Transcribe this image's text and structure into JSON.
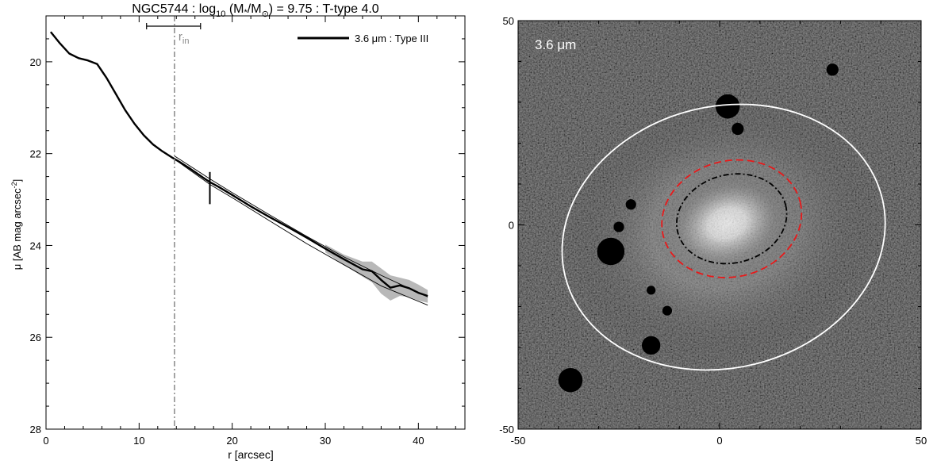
{
  "chart_data": [
    {
      "type": "line",
      "title": {
        "pre": "NGC5744 : log",
        "sub10": "10",
        "mid": " (M",
        "star": "*",
        "slash": "/M",
        "sun": "⊙",
        "post": ") = 9.75 : T-type 4.0"
      },
      "xlabel": "r [arcsec]",
      "ylabel": {
        "main": "μ [AB mag arcsec",
        "sup": "-2",
        "close": "]"
      },
      "xlim": [
        0,
        45
      ],
      "ylim": [
        28,
        19
      ],
      "x_ticks": [
        0,
        10,
        20,
        30,
        40
      ],
      "y_ticks": [
        20,
        22,
        24,
        26,
        28
      ],
      "legend": {
        "label": "3.6 μm : Type III",
        "position": "top-right"
      },
      "r_in": {
        "label_main": "r",
        "label_sub": "in",
        "value": 13.8,
        "range": [
          10.8,
          16.6
        ]
      },
      "break_marker": {
        "x": 17.6,
        "y_range": [
          22.4,
          23.1
        ]
      },
      "series": [
        {
          "name": "3.6 μm : Type III",
          "x": [
            0.5,
            1.5,
            2.5,
            3.5,
            4.5,
            5.5,
            6.5,
            7.5,
            8.5,
            9.5,
            10.5,
            11.5,
            12.5,
            13.5,
            14.5,
            15.5,
            16.5,
            17.6,
            18.5,
            20,
            22,
            24,
            26,
            28,
            30,
            32,
            34,
            35,
            36,
            37,
            38,
            39,
            40,
            41
          ],
          "y": [
            19.35,
            19.6,
            19.82,
            19.92,
            19.97,
            20.05,
            20.35,
            20.7,
            21.05,
            21.35,
            21.6,
            21.8,
            21.95,
            22.08,
            22.2,
            22.33,
            22.47,
            22.62,
            22.72,
            22.9,
            23.15,
            23.38,
            23.6,
            23.83,
            24.07,
            24.3,
            24.52,
            24.56,
            24.75,
            24.92,
            24.87,
            24.93,
            25.03,
            25.1
          ]
        },
        {
          "name": "",
          "style": "fit-upper",
          "x": [
            13.8,
            17.6,
            20,
            24,
            28,
            32,
            36,
            41
          ],
          "y": [
            22.05,
            22.55,
            22.85,
            23.33,
            23.8,
            24.25,
            24.65,
            25.12
          ]
        },
        {
          "name": "",
          "style": "fit-lower",
          "x": [
            13.8,
            17.6,
            20,
            24,
            28,
            32,
            36,
            41
          ],
          "y": [
            22.12,
            22.67,
            22.96,
            23.46,
            23.96,
            24.42,
            24.88,
            25.3
          ]
        }
      ],
      "uncertainty_band": {
        "x": [
          30,
          32,
          34,
          35,
          36,
          37,
          38,
          39,
          40,
          41
        ],
        "lower": [
          23.98,
          24.2,
          24.35,
          24.35,
          24.5,
          24.65,
          24.7,
          24.75,
          24.85,
          24.97
        ],
        "upper": [
          24.15,
          24.42,
          24.68,
          24.8,
          25.05,
          25.2,
          25.1,
          25.12,
          25.2,
          25.25
        ]
      }
    },
    {
      "type": "heatmap",
      "label": "3.6 μm",
      "xlim": [
        -50,
        50
      ],
      "ylim": [
        -50,
        50
      ],
      "x_ticks": [
        -50,
        0,
        50
      ],
      "y_ticks": [
        -50,
        0,
        50
      ],
      "colormap": "grayscale",
      "galaxy_center": [
        2,
        0
      ],
      "ellipses": [
        {
          "name": "outer-ellipse",
          "color": "#ffffff",
          "style": "solid",
          "center": [
            1,
            -3
          ],
          "a": 40.5,
          "b": 32,
          "angle_deg": 14
        },
        {
          "name": "break-ellipse",
          "color": "#e8191a",
          "style": "dashed",
          "center": [
            3,
            1.5
          ],
          "a": 17.5,
          "b": 14.2,
          "angle_deg": 14
        },
        {
          "name": "r-in-ellipse",
          "color": "#000000",
          "style": "dashdot",
          "center": [
            3,
            1.5
          ],
          "a": 13.8,
          "b": 10.8,
          "angle_deg": 14
        }
      ],
      "masks": [
        {
          "x": 2,
          "y": 29,
          "r": 3
        },
        {
          "x": 4.5,
          "y": 23.5,
          "r": 1.5
        },
        {
          "x": 28,
          "y": 38,
          "r": 1.5
        },
        {
          "x": -22,
          "y": 5,
          "r": 1.3
        },
        {
          "x": -25,
          "y": -0.5,
          "r": 1.3
        },
        {
          "x": -27,
          "y": -6.5,
          "r": 3.4
        },
        {
          "x": -17,
          "y": -16,
          "r": 1.1
        },
        {
          "x": -13,
          "y": -21,
          "r": 1.2
        },
        {
          "x": -17,
          "y": -29.5,
          "r": 2.3
        },
        {
          "x": -37,
          "y": -38,
          "r": 3
        }
      ]
    }
  ]
}
